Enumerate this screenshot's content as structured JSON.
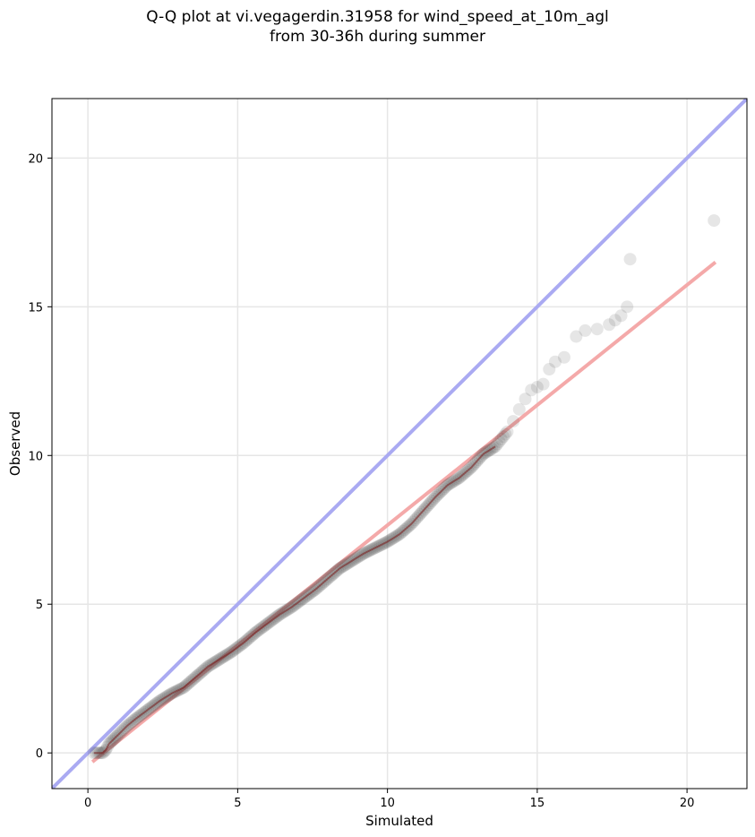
{
  "chart_data": {
    "type": "scatter",
    "title_lines": [
      "Q-Q plot at vi.vegagerdin.31958 for wind_speed_at_10m_agl",
      "from 30-36h during summer"
    ],
    "xlabel": "Simulated",
    "ylabel": "Observed",
    "xlim": [
      -1.2,
      22.0
    ],
    "ylim": [
      -1.2,
      22.0
    ],
    "xticks": [
      0,
      5,
      10,
      15,
      20
    ],
    "yticks": [
      0,
      5,
      10,
      15,
      20
    ],
    "grid": true,
    "colors": {
      "points": "#404040",
      "identity_line": "#aaaaf2",
      "fit_line": "#f4a9a9",
      "dense_overlay": "#7a1a1a"
    },
    "identity_line": {
      "x": [
        -1.2,
        22.0
      ],
      "y": [
        -1.2,
        22.0
      ]
    },
    "fit_line": {
      "x": [
        0.15,
        20.95
      ],
      "y": [
        -0.3,
        16.5
      ]
    },
    "quantiles": {
      "x": [
        0.2,
        0.35,
        0.5,
        0.6,
        0.7,
        0.85,
        1.0,
        1.3,
        1.6,
        2.0,
        2.4,
        2.8,
        3.2,
        3.6,
        4.0,
        4.4,
        4.8,
        5.2,
        5.6,
        6.0,
        6.4,
        6.8,
        7.2,
        7.6,
        8.0,
        8.4,
        8.8,
        9.2,
        9.6,
        10.0,
        10.4,
        10.8,
        11.2,
        11.6,
        12.0,
        12.4,
        12.8,
        13.2,
        13.6,
        13.8,
        14.0,
        14.2,
        14.4,
        14.6,
        14.8,
        15.0,
        15.2,
        15.4,
        15.6,
        15.9,
        16.3,
        16.6,
        17.0,
        17.4,
        17.6,
        17.8,
        18.0,
        18.1,
        20.9
      ],
      "y": [
        0.0,
        0.0,
        0.0,
        0.1,
        0.3,
        0.45,
        0.6,
        0.9,
        1.15,
        1.45,
        1.75,
        2.0,
        2.2,
        2.55,
        2.9,
        3.15,
        3.4,
        3.7,
        4.05,
        4.35,
        4.65,
        4.9,
        5.2,
        5.5,
        5.85,
        6.2,
        6.45,
        6.7,
        6.9,
        7.1,
        7.35,
        7.7,
        8.15,
        8.6,
        9.0,
        9.25,
        9.6,
        10.05,
        10.3,
        10.55,
        10.8,
        11.15,
        11.55,
        11.9,
        12.2,
        12.3,
        12.4,
        12.9,
        13.15,
        13.3,
        14.0,
        14.2,
        14.25,
        14.4,
        14.55,
        14.7,
        15.0,
        16.6,
        17.9
      ]
    }
  }
}
